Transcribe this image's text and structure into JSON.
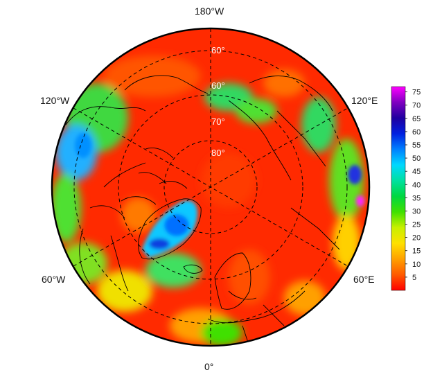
{
  "map": {
    "projection": "north-polar-stereographic",
    "longitude_labels": {
      "top": "180°W",
      "bottom": "0°",
      "upper_left": "120°W",
      "upper_right": "120°E",
      "lower_left": "60°W",
      "lower_right": "60°E"
    },
    "latitude_labels": [
      "60°",
      "60°",
      "70°",
      "80°"
    ],
    "colors": {
      "ocean_red": "#ff2600",
      "land_outline": "#000000",
      "border": "#000000",
      "graticule": "#000000"
    }
  },
  "colorbar": {
    "ticks": [
      "75",
      "70",
      "65",
      "60",
      "55",
      "50",
      "45",
      "40",
      "35",
      "30",
      "25",
      "20",
      "15",
      "10",
      "5"
    ],
    "min": 0,
    "max": 77,
    "stops": [
      "#ff0000",
      "#ff5a00",
      "#ffa000",
      "#ffe000",
      "#c8f000",
      "#40e000",
      "#00d840",
      "#00e0a0",
      "#00d8ff",
      "#0080ff",
      "#0020e0",
      "#2000a0",
      "#8000c0",
      "#ff00ff"
    ]
  }
}
